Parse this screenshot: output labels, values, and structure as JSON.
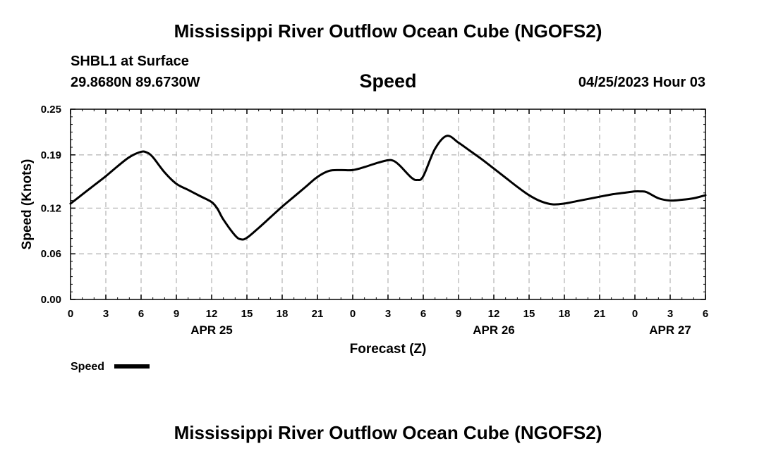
{
  "header": {
    "title": "Mississippi River Outflow Ocean Cube (NGOFS2)",
    "station": "SHBL1 at Surface",
    "coordinates": "29.8680N  89.6730W",
    "chart_title": "Speed",
    "datetime": "04/25/2023 Hour 03"
  },
  "footer": {
    "title": "Mississippi River Outflow Ocean Cube (NGOFS2)"
  },
  "chart_data": {
    "type": "line",
    "title": "Speed",
    "xlabel": "Forecast (Z)",
    "ylabel": "Speed (Knots)",
    "x_unit": "hours from 04/25/2023 00Z",
    "xlim": [
      0,
      54
    ],
    "ylim": [
      0,
      0.25
    ],
    "yticks": [
      0.0,
      0.06,
      0.12,
      0.19,
      0.25
    ],
    "ytick_labels": [
      "0.00",
      "0.06",
      "0.12",
      "0.19",
      "0.25"
    ],
    "xticks": [
      0,
      3,
      6,
      9,
      12,
      15,
      18,
      21,
      24,
      27,
      30,
      33,
      36,
      39,
      42,
      45,
      48,
      51,
      54
    ],
    "xtick_labels": [
      "0",
      "3",
      "6",
      "9",
      "12",
      "15",
      "18",
      "21",
      "0",
      "3",
      "6",
      "9",
      "12",
      "15",
      "18",
      "21",
      "0",
      "3",
      "6"
    ],
    "date_labels": [
      {
        "x": 12,
        "label": "APR 25"
      },
      {
        "x": 36,
        "label": "APR 26"
      },
      {
        "x": 51,
        "label": "APR 27"
      }
    ],
    "grid": true,
    "legend": {
      "position": "bottom-left",
      "label": "Speed"
    },
    "series": [
      {
        "name": "Speed",
        "color": "#000000",
        "x": [
          0,
          1,
          2,
          3,
          4,
          5,
          6,
          6.5,
          7,
          8,
          9,
          10,
          11,
          12,
          12.5,
          13,
          14,
          14.5,
          15,
          16,
          17,
          18,
          19,
          20,
          21,
          22,
          23,
          24,
          25,
          26,
          27,
          27.5,
          28,
          29,
          29.5,
          30,
          31,
          32,
          33,
          34,
          35,
          36,
          37,
          38,
          39,
          40,
          41,
          42,
          43,
          44,
          45,
          46,
          47,
          48,
          48.5,
          49,
          50,
          51,
          52,
          53,
          54
        ],
        "y": [
          0.126,
          0.138,
          0.15,
          0.162,
          0.175,
          0.187,
          0.194,
          0.193,
          0.187,
          0.167,
          0.152,
          0.144,
          0.136,
          0.128,
          0.119,
          0.105,
          0.084,
          0.079,
          0.081,
          0.094,
          0.108,
          0.122,
          0.135,
          0.148,
          0.161,
          0.169,
          0.17,
          0.17,
          0.174,
          0.179,
          0.183,
          0.182,
          0.176,
          0.16,
          0.157,
          0.162,
          0.198,
          0.215,
          0.206,
          0.195,
          0.184,
          0.172,
          0.16,
          0.148,
          0.137,
          0.129,
          0.125,
          0.126,
          0.129,
          0.132,
          0.135,
          0.138,
          0.14,
          0.142,
          0.142,
          0.141,
          0.133,
          0.13,
          0.131,
          0.133,
          0.137
        ]
      }
    ]
  }
}
